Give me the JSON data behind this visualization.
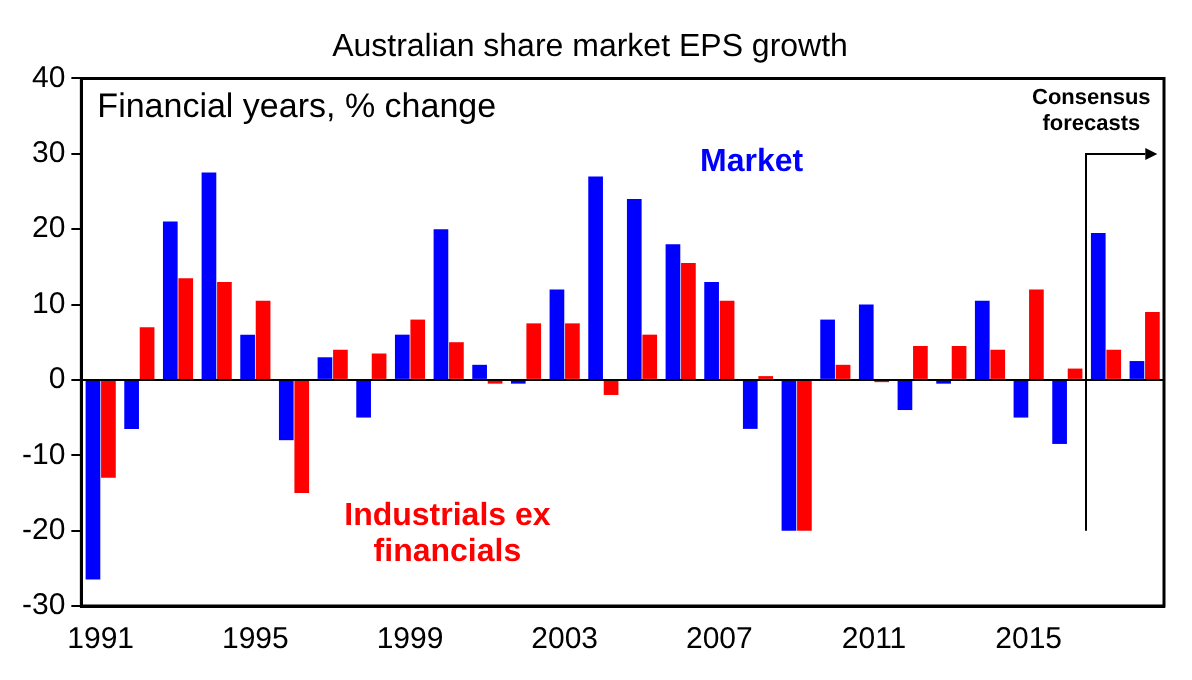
{
  "chart_data": {
    "type": "bar",
    "title": "Australian share market EPS growth",
    "subtitle": "Financial years, % change",
    "categories": [
      "1991",
      null,
      null,
      null,
      "1995",
      null,
      null,
      null,
      "1999",
      null,
      null,
      null,
      "2003",
      null,
      null,
      null,
      "2007",
      null,
      null,
      null,
      "2011",
      null,
      null,
      null,
      "2015",
      null,
      null,
      null
    ],
    "series": [
      {
        "name": "Market",
        "color": "#0000ff",
        "values": [
          -26.5,
          -6.5,
          21,
          27.5,
          6,
          -8,
          3,
          -5,
          6,
          20,
          2,
          -0.5,
          12,
          27,
          24,
          18,
          13,
          -6.5,
          -20,
          8,
          10,
          -4,
          -0.5,
          10.5,
          -5,
          -8.5,
          19.5,
          2.5
        ]
      },
      {
        "name": "Industrials ex financials",
        "color": "#ff0000",
        "values": [
          -13,
          7,
          13.5,
          13,
          10.5,
          -15,
          4,
          3.5,
          8,
          5,
          -0.5,
          7.5,
          7.5,
          -2,
          6,
          15.5,
          10.5,
          0.5,
          -20,
          2,
          -0.3,
          4.5,
          4.5,
          4,
          12,
          1.5,
          4,
          9
        ]
      }
    ],
    "ref_lines": [
      {
        "axis": "y",
        "value": 0,
        "color": "#000000"
      }
    ],
    "ylim": [
      -30,
      40
    ],
    "yticks": [
      -30,
      -20,
      -10,
      0,
      10,
      20,
      30,
      40
    ],
    "grid": false,
    "legend": false,
    "annotations": [
      "Consensus forecasts"
    ]
  }
}
